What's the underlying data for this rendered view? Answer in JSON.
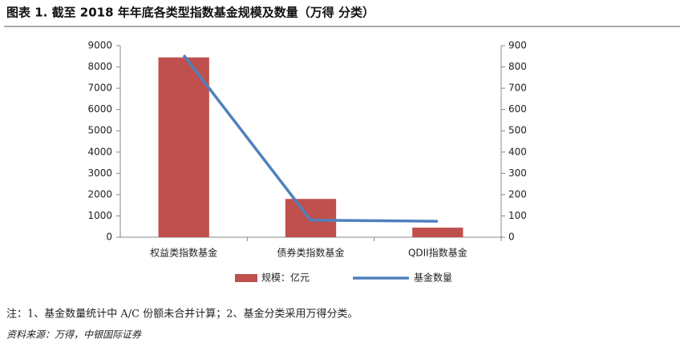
{
  "chart_data": {
    "type": "bar",
    "title": "图表 1. 截至 2018 年年底各类型指数基金规模及数量（万得 分类）",
    "categories": [
      "权益类指数基金",
      "债券类指数基金",
      "QDII指数基金"
    ],
    "series": [
      {
        "name": "规模：亿元",
        "type": "bar",
        "color": "#c0504d",
        "axis": "y",
        "values": [
          8450,
          1800,
          450
        ]
      },
      {
        "name": "基金数量",
        "type": "line",
        "color": "#4f81bd",
        "axis": "y2",
        "values": [
          855,
          80,
          75
        ]
      }
    ],
    "ylim": [
      0,
      9000
    ],
    "yticks": [
      0,
      1000,
      2000,
      3000,
      4000,
      5000,
      6000,
      7000,
      8000,
      9000
    ],
    "y2lim": [
      0,
      900
    ],
    "y2ticks": [
      0,
      100,
      200,
      300,
      400,
      500,
      600,
      700,
      800,
      900
    ],
    "grid": false,
    "legend": "bottom"
  },
  "note": "注：1、基金数量统计中 A/C 份额未合并计算；2、基金分类采用万得分类。",
  "source": "资料来源：万得，中银国际证券"
}
